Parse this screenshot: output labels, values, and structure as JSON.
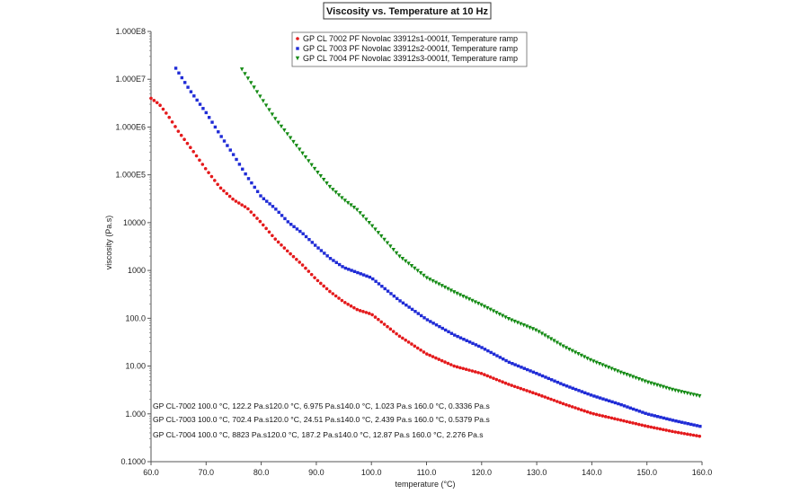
{
  "chart_data": {
    "type": "scatter",
    "title": "Viscosity vs. Temperature at 10 Hz",
    "xlabel": "temperature (°C)",
    "ylabel": "viscosity (Pa.s)",
    "xlim": [
      60,
      160
    ],
    "ylim": [
      0.1,
      100000000
    ],
    "yscale": "log",
    "grid": false,
    "legend_position": "top-right",
    "x_ticks": [
      60,
      70,
      80,
      90,
      100,
      110,
      120,
      130,
      140,
      150,
      160
    ],
    "x_tick_labels": [
      "60.0",
      "70.0",
      "80.0",
      "90.0",
      "100.0",
      "110.0",
      "120.0",
      "130.0",
      "140.0",
      "150.0",
      "160.0"
    ],
    "y_ticks": [
      0.1,
      1,
      10,
      100,
      1000,
      10000,
      100000,
      1000000,
      10000000,
      100000000
    ],
    "y_tick_labels": [
      "0.1000",
      "1.000",
      "10.00",
      "100.0",
      "1000",
      "10000",
      "1.000E5",
      "1.000E6",
      "1.000E7",
      "1.000E8"
    ],
    "series": [
      {
        "name": "GP CL 7002 PF Novolac 33912s1-0001f, Temperature ramp",
        "color": "#e41a1c",
        "marker": "circle",
        "x": [
          60,
          61.5,
          63,
          65,
          67.5,
          70,
          72.5,
          75,
          77.5,
          80,
          82.5,
          85,
          87.5,
          90,
          92.5,
          95,
          97.5,
          100,
          105,
          110,
          115,
          120,
          125,
          130,
          135,
          140,
          145,
          150,
          155,
          160
        ],
        "y": [
          4000000,
          3000000,
          1800000,
          800000,
          330000,
          130000,
          55000,
          30000,
          20000,
          10000,
          4600,
          2400,
          1300,
          650,
          360,
          220,
          150,
          122.2,
          43,
          18,
          10,
          6.975,
          4.1,
          2.6,
          1.6,
          1.023,
          0.75,
          0.55,
          0.42,
          0.3336
        ]
      },
      {
        "name": "GP CL 7003 PF Novolac 33912s2-0001f, Temperature ramp",
        "color": "#1f2bd6",
        "marker": "square",
        "x": [
          64.5,
          67,
          70,
          72.5,
          75,
          77.5,
          80,
          82.5,
          85,
          87.5,
          90,
          92.5,
          95,
          97.5,
          100,
          105,
          110,
          115,
          120,
          125,
          130,
          135,
          140,
          145,
          150,
          155,
          160
        ],
        "y": [
          17000000,
          6000000,
          2000000,
          700000,
          260000,
          90000,
          35000,
          20000,
          10000,
          6000,
          3200,
          1800,
          1150,
          900,
          702.4,
          240,
          95,
          45,
          24.51,
          12,
          7,
          4,
          2.439,
          1.6,
          1.0,
          0.72,
          0.5379
        ]
      },
      {
        "name": "GP CL 7004 PF Novolac 33912s3-0001f, Temperature ramp",
        "color": "#138a13",
        "marker": "triangle-down",
        "x": [
          76.5,
          80,
          82.5,
          85,
          87.5,
          90,
          92.5,
          95,
          97.5,
          100,
          105,
          110,
          115,
          120,
          125,
          130,
          135,
          140,
          145,
          150,
          155,
          160
        ],
        "y": [
          16000000,
          4000000,
          1500000,
          650000,
          280000,
          120000,
          55000,
          30000,
          18000,
          8823,
          2000,
          700,
          350,
          187.2,
          95,
          55,
          25,
          12.87,
          7.5,
          4.6,
          3.1,
          2.276
        ]
      }
    ],
    "annotations": [
      {
        "series": "GP CL-7002",
        "text": "GP CL-7002 100.0 °C, 122.2 Pa.s120.0 °C, 6.975 Pa.s140.0 °C, 1.023 Pa.s 160.0 °C, 0.3336 Pa.s"
      },
      {
        "series": "GP CL-7003",
        "text": "GP CL-7003 100.0 °C, 702.4 Pa.s120.0 °C, 24.51 Pa.s140.0 °C, 2.439 Pa.s 160.0 °C, 0.5379 Pa.s"
      },
      {
        "series": "GP CL-7004",
        "text": "GP CL-7004 100.0 °C, 8823 Pa.s120.0 °C, 187.2 Pa.s140.0 °C, 12.87 Pa.s 160.0 °C, 2.276 Pa.s"
      }
    ]
  }
}
